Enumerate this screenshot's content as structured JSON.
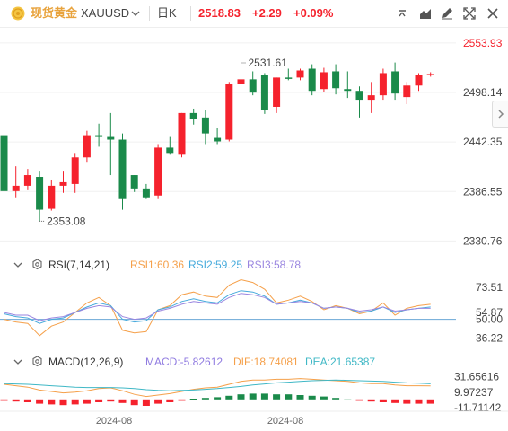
{
  "header": {
    "symbol_cn": "现货黄金",
    "symbol": "XAUUSD",
    "period": "日K",
    "price": "2518.83",
    "change": "+2.29",
    "change_pct": "+0.09%"
  },
  "colors": {
    "up": "#f5222d",
    "down": "#1a8a4a",
    "accent": "#e8a33d",
    "rsi1": "#f5a04a",
    "rsi2": "#46aadc",
    "rsi3": "#9a86e0",
    "macd": "#8f7ae0",
    "dif": "#f5a04a",
    "dea": "#40b8c6"
  },
  "icons": [
    "collapse-arrow-icon",
    "area-chart-icon",
    "pen-tool-icon",
    "fullscreen-icon",
    "close-icon",
    "settings-icon",
    "collapse-side-icon"
  ],
  "rsi_legend": {
    "name": "RSI(7,14,21)",
    "rsi1": "RSI1:60.36",
    "rsi2": "RSI2:59.25",
    "rsi3": "RSI3:58.78"
  },
  "macd_legend": {
    "name": "MACD(12,26,9)",
    "macd": "MACD:-5.82612",
    "dif": "DIF:18.74081",
    "dea": "DEA:21.65387"
  },
  "chart_data": [
    {
      "type": "candlestick",
      "title": "现货黄金 XAUUSD 日K",
      "y_ticks": [
        "2553.93",
        "2498.14",
        "2442.35",
        "2386.55",
        "2330.76"
      ],
      "ylim": [
        2320,
        2565
      ],
      "annotations": [
        {
          "label": "2531.61",
          "x_index": 20,
          "value": 2531.61
        },
        {
          "label": "2353.08",
          "x_index": 3,
          "value": 2353.08
        }
      ],
      "candles": [
        {
          "o": 2450,
          "h": 2450,
          "c": 2387,
          "l": 2383
        },
        {
          "o": 2387,
          "h": 2415,
          "c": 2393,
          "l": 2380
        },
        {
          "o": 2393,
          "h": 2412,
          "c": 2405,
          "l": 2388
        },
        {
          "o": 2403,
          "h": 2410,
          "c": 2366,
          "l": 2353
        },
        {
          "o": 2367,
          "h": 2400,
          "c": 2393,
          "l": 2365
        },
        {
          "o": 2393,
          "h": 2410,
          "c": 2397,
          "l": 2385
        },
        {
          "o": 2395,
          "h": 2430,
          "c": 2425,
          "l": 2385
        },
        {
          "o": 2425,
          "h": 2455,
          "c": 2450,
          "l": 2420
        },
        {
          "o": 2450,
          "h": 2463,
          "c": 2448,
          "l": 2437
        },
        {
          "o": 2448,
          "h": 2475,
          "c": 2445,
          "l": 2405
        },
        {
          "o": 2445,
          "h": 2452,
          "c": 2378,
          "l": 2366
        },
        {
          "o": 2405,
          "h": 2405,
          "c": 2390,
          "l": 2386
        },
        {
          "o": 2390,
          "h": 2395,
          "c": 2380,
          "l": 2378
        },
        {
          "o": 2382,
          "h": 2440,
          "c": 2436,
          "l": 2378
        },
        {
          "o": 2436,
          "h": 2448,
          "c": 2430,
          "l": 2428
        },
        {
          "o": 2428,
          "h": 2475,
          "c": 2475,
          "l": 2425
        },
        {
          "o": 2475,
          "h": 2480,
          "c": 2468,
          "l": 2462
        },
        {
          "o": 2470,
          "h": 2478,
          "c": 2452,
          "l": 2440
        },
        {
          "o": 2447,
          "h": 2458,
          "c": 2443,
          "l": 2440
        },
        {
          "o": 2445,
          "h": 2510,
          "c": 2508,
          "l": 2443
        },
        {
          "o": 2508,
          "h": 2531,
          "c": 2513,
          "l": 2507
        },
        {
          "o": 2513,
          "h": 2522,
          "c": 2498,
          "l": 2495
        },
        {
          "o": 2518,
          "h": 2520,
          "c": 2478,
          "l": 2474
        },
        {
          "o": 2482,
          "h": 2515,
          "c": 2515,
          "l": 2475
        },
        {
          "o": 2515,
          "h": 2525,
          "c": 2514,
          "l": 2512
        },
        {
          "o": 2515,
          "h": 2525,
          "c": 2523,
          "l": 2512
        },
        {
          "o": 2525,
          "h": 2530,
          "c": 2500,
          "l": 2495
        },
        {
          "o": 2502,
          "h": 2526,
          "c": 2521,
          "l": 2499
        },
        {
          "o": 2522,
          "h": 2530,
          "c": 2503,
          "l": 2496
        },
        {
          "o": 2502,
          "h": 2522,
          "c": 2500,
          "l": 2492
        },
        {
          "o": 2500,
          "h": 2505,
          "c": 2490,
          "l": 2470
        },
        {
          "o": 2490,
          "h": 2510,
          "c": 2495,
          "l": 2475
        },
        {
          "o": 2495,
          "h": 2525,
          "c": 2520,
          "l": 2490
        },
        {
          "o": 2522,
          "h": 2532,
          "c": 2497,
          "l": 2490
        },
        {
          "o": 2493,
          "h": 2510,
          "c": 2506,
          "l": 2485
        },
        {
          "o": 2506,
          "h": 2520,
          "c": 2518,
          "l": 2500
        },
        {
          "o": 2518,
          "h": 2521,
          "c": 2519,
          "l": 2516
        }
      ]
    },
    {
      "type": "line",
      "title": "RSI(7,14,21)",
      "y_ticks": [
        "73.51",
        "54.87",
        "50.00",
        "36.22"
      ],
      "ylim": [
        30,
        80
      ],
      "series": [
        {
          "name": "RSI1",
          "values": [
            50,
            48,
            47,
            38,
            45,
            48,
            55,
            62,
            66,
            60,
            42,
            40,
            41,
            57,
            60,
            68,
            70,
            67,
            66,
            75,
            79,
            77,
            72,
            62,
            64,
            67,
            63,
            57,
            60,
            58,
            54,
            56,
            62,
            53,
            58,
            60,
            61
          ]
        },
        {
          "name": "RSI2",
          "values": [
            54,
            52,
            51,
            47,
            50,
            51,
            55,
            59,
            62,
            60,
            50,
            48,
            49,
            57,
            59,
            63,
            65,
            63,
            62,
            68,
            71,
            70,
            67,
            61,
            62,
            64,
            62,
            58,
            59,
            58,
            55,
            56,
            59,
            55,
            57,
            58,
            59
          ]
        },
        {
          "name": "RSI3",
          "values": [
            55,
            53,
            53,
            49,
            51,
            52,
            55,
            58,
            60,
            59,
            52,
            50,
            51,
            56,
            58,
            61,
            63,
            62,
            61,
            66,
            69,
            68,
            66,
            61,
            62,
            63,
            62,
            58,
            59,
            58,
            56,
            57,
            59,
            56,
            57,
            58,
            58
          ]
        }
      ]
    },
    {
      "type": "bar",
      "title": "MACD(12,26,9)",
      "x_ticks": [
        "2024-08",
        "2024-08"
      ],
      "y_ticks": [
        "31.65616",
        "9.97237",
        "-11.71142"
      ],
      "ylim": [
        -14,
        36
      ],
      "series": [
        {
          "name": "MACD",
          "values": [
            -2,
            -3,
            -4,
            -6,
            -7,
            -8,
            -7,
            -6,
            -4,
            -3,
            -5,
            -8,
            -9,
            -6,
            -4,
            -2,
            1,
            2,
            3,
            5,
            7,
            8,
            8,
            7,
            7,
            6,
            5,
            4,
            2,
            0,
            -2,
            -3,
            -4,
            -5,
            -6,
            -6,
            -6
          ]
        },
        {
          "name": "DIF",
          "values": [
            21,
            19,
            17,
            13,
            11,
            9,
            10,
            12,
            15,
            16,
            12,
            7,
            4,
            6,
            8,
            11,
            14,
            16,
            17,
            21,
            25,
            27,
            27,
            28,
            28,
            29,
            28,
            27,
            26,
            25,
            23,
            22,
            22,
            20,
            19,
            19,
            18.7
          ]
        },
        {
          "name": "DEA",
          "values": [
            22,
            21.5,
            21,
            20,
            19,
            18,
            17,
            16.5,
            16.5,
            16.5,
            16,
            15,
            13.5,
            12.5,
            12,
            12.5,
            13,
            14,
            15,
            16.5,
            18,
            20,
            21.5,
            23,
            24,
            25,
            26,
            26.5,
            27,
            26.5,
            26,
            25.5,
            25,
            24,
            23,
            22.5,
            21.7
          ]
        }
      ]
    }
  ]
}
